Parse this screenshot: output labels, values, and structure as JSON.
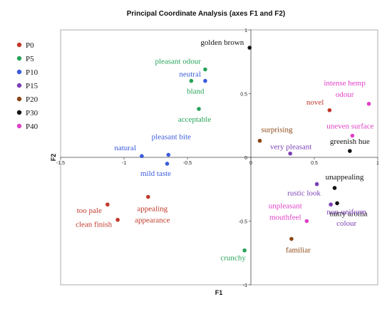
{
  "chart_data": {
    "type": "scatter",
    "title": "Principal Coordinate Analysis (axes F1 and F2)",
    "xlabel": "F1",
    "ylabel": "F2",
    "xlim": [
      -1.5,
      1
    ],
    "ylim": [
      -1,
      1
    ],
    "x_ticks": [
      "-1.5",
      "-1",
      "-0.5",
      "0",
      "0.5",
      "1"
    ],
    "x_tick_values": [
      -1.5,
      -1,
      -0.5,
      0,
      0.5,
      1
    ],
    "y_ticks": [
      "-1",
      "-0.5",
      "0",
      "0.5",
      "1"
    ],
    "y_tick_values": [
      -1,
      -0.5,
      0,
      0.5,
      1
    ],
    "grid": false,
    "legend_position": "left",
    "series": [
      {
        "name": "P0",
        "color": "#c0392b"
      },
      {
        "name": "P5",
        "color": "#27a35a"
      },
      {
        "name": "P10",
        "color": "#3b5bdb"
      },
      {
        "name": "P15",
        "color": "#7b3fb5"
      },
      {
        "name": "P20",
        "color": "#8b4513"
      },
      {
        "name": "P30",
        "color": "#111111"
      },
      {
        "name": "P40",
        "color": "#e040c8"
      }
    ],
    "points": [
      {
        "label": "golden brown",
        "series": "P30",
        "x": -0.01,
        "y": 0.86
      },
      {
        "label": "pleasant odour",
        "series": "P5",
        "x": -0.36,
        "y": 0.69
      },
      {
        "label": "neutral",
        "series": "P10",
        "x": -0.36,
        "y": 0.6
      },
      {
        "label": "bland",
        "series": "P5",
        "x": -0.47,
        "y": 0.6
      },
      {
        "label": "acceptable",
        "series": "P5",
        "x": -0.41,
        "y": 0.38
      },
      {
        "label": "pleasant bite",
        "series": "P10",
        "x": -0.65,
        "y": 0.02
      },
      {
        "label": "natural",
        "series": "P10",
        "x": -0.86,
        "y": 0.01
      },
      {
        "label": "mild taste",
        "series": "P10",
        "x": -0.66,
        "y": -0.05
      },
      {
        "label": "too pale",
        "series": "P0",
        "x": -1.13,
        "y": -0.37
      },
      {
        "label": "appealing appearance",
        "series": "P0",
        "x": -0.81,
        "y": -0.31
      },
      {
        "label": "clean finish",
        "series": "P0",
        "x": -1.05,
        "y": -0.49
      },
      {
        "label": "crunchy",
        "series": "P5",
        "x": -0.05,
        "y": -0.73
      },
      {
        "label": "intense hemp odour",
        "series": "P40",
        "x": 0.93,
        "y": 0.42
      },
      {
        "label": "novel",
        "series": "P0",
        "x": 0.62,
        "y": 0.37
      },
      {
        "label": "uneven surface",
        "series": "P40",
        "x": 0.8,
        "y": 0.17
      },
      {
        "label": "surprising",
        "series": "P20",
        "x": 0.07,
        "y": 0.13
      },
      {
        "label": "very pleasant",
        "series": "P15",
        "x": 0.31,
        "y": 0.03
      },
      {
        "label": "greenish hue",
        "series": "P30",
        "x": 0.78,
        "y": 0.05
      },
      {
        "label": "unappealing",
        "series": "P30",
        "x": 0.66,
        "y": -0.24
      },
      {
        "label": "rustic look",
        "series": "P15",
        "x": 0.52,
        "y": -0.21
      },
      {
        "label": "nutty aroma",
        "series": "P30",
        "x": 0.68,
        "y": -0.36
      },
      {
        "label": "unpleasant mouthfeel",
        "series": "P40",
        "x": 0.44,
        "y": -0.5
      },
      {
        "label": "non-uniform colour",
        "series": "P15",
        "x": 0.63,
        "y": -0.37
      },
      {
        "label": "familiar",
        "series": "P20",
        "x": 0.32,
        "y": -0.64
      }
    ]
  }
}
